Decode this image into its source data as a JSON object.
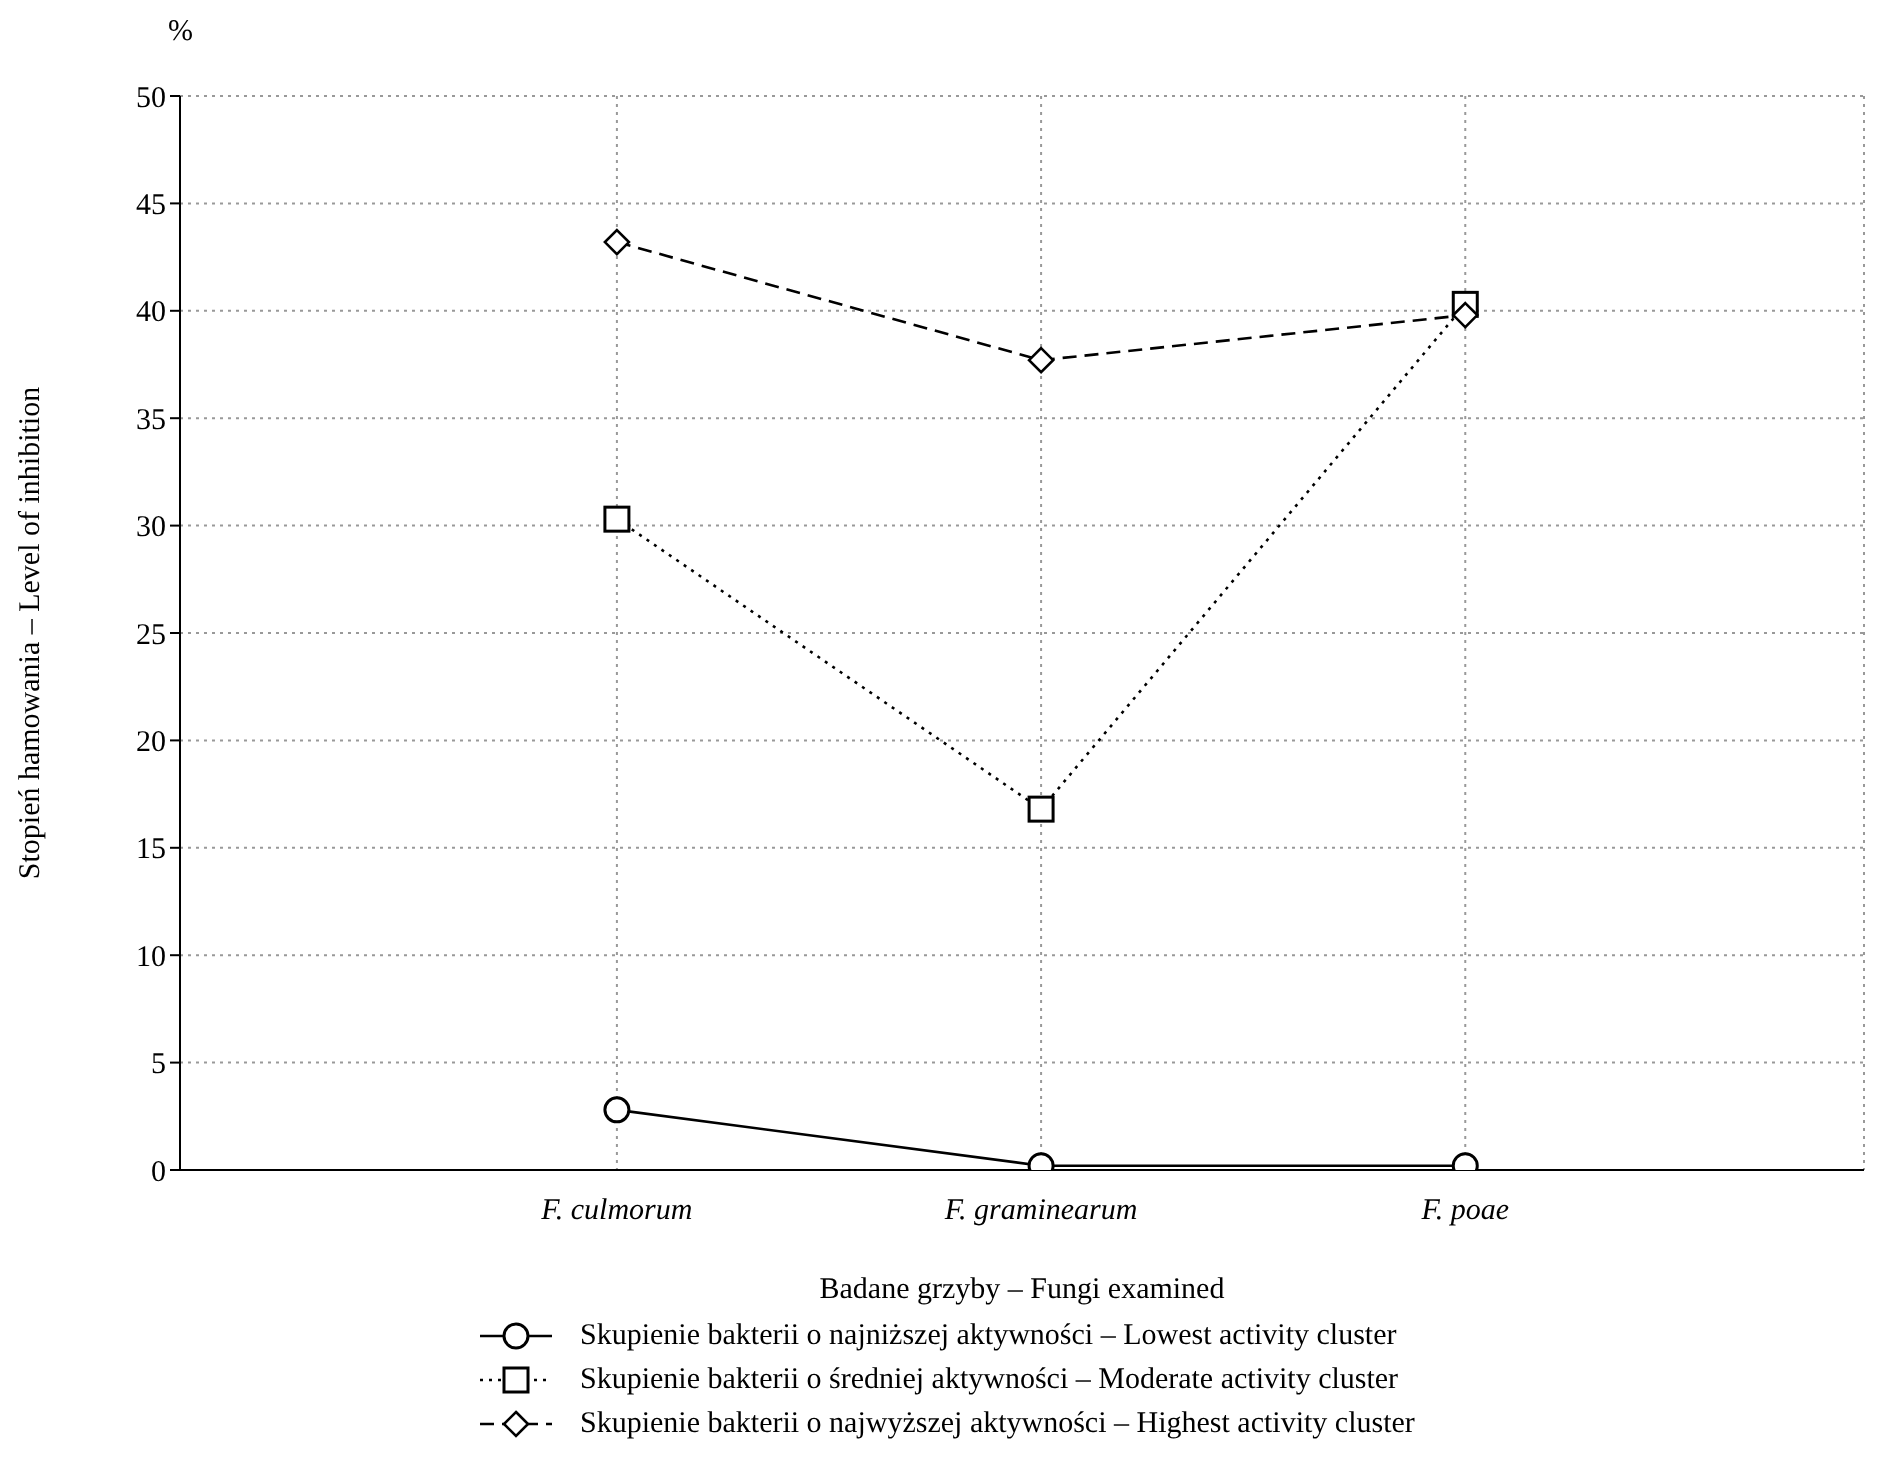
{
  "chart_data": {
    "type": "line",
    "xlabel": "Badane grzyby – Fungi examined",
    "ylabel": "Stopień hamowania – Level of inhibition",
    "annotations": [
      "%"
    ],
    "categories": [
      "F. culmorum",
      "F. graminearum",
      "F. poae"
    ],
    "series": [
      {
        "name": "Skupienie bakterii o najniższej aktywności – Lowest activity cluster",
        "color": "#000000",
        "values": [
          2.8,
          0.2,
          0.2
        ],
        "marker": "circle",
        "line_style": "solid"
      },
      {
        "name": "Skupienie bakterii o średniej aktywności – Moderate activity cluster",
        "color": "#000000",
        "values": [
          30.3,
          16.8,
          40.3
        ],
        "marker": "square",
        "line_style": "dotted"
      },
      {
        "name": "Skupienie bakterii o najwyższej aktywności – Highest activity cluster",
        "color": "#000000",
        "values": [
          43.2,
          37.7,
          39.8
        ],
        "marker": "diamond",
        "line_style": "dashed"
      }
    ],
    "ylim": [
      0,
      50
    ],
    "yticks": [
      0,
      5,
      10,
      15,
      20,
      25,
      30,
      35,
      40,
      45,
      50
    ],
    "grid": true,
    "legend": "bottom"
  }
}
